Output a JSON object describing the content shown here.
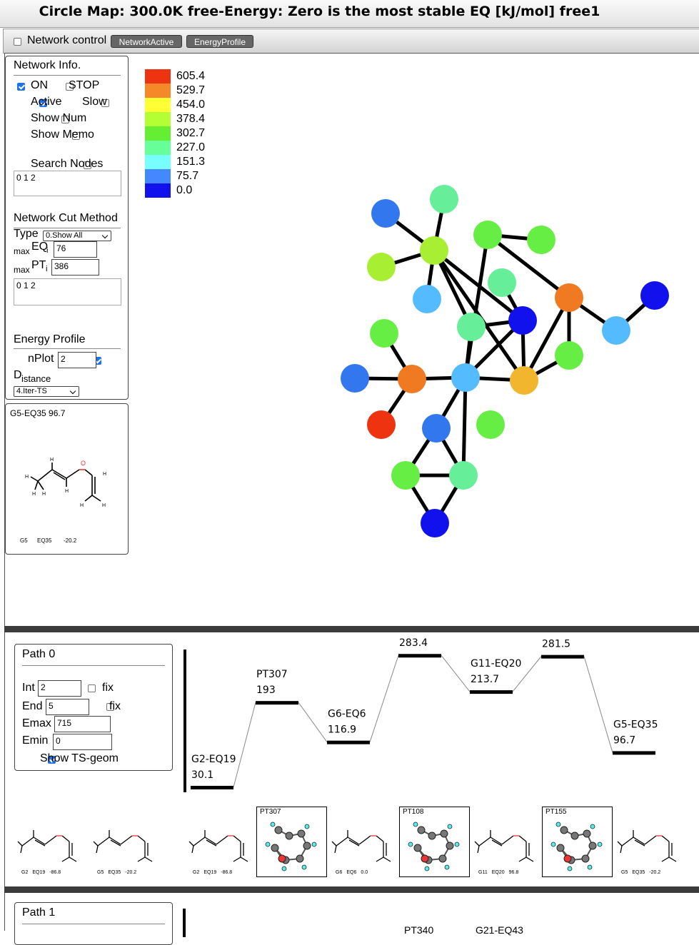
{
  "title": "Circle Map: 300.0K free-Energy: Zero is the most stable EQ [kJ/mol] free1",
  "control_bar": {
    "network_control_label": "Network control",
    "network_control_checked": false,
    "network_active_btn": "NetworkActive",
    "energy_profile_btn": "EnergyProfile"
  },
  "network_info": {
    "title": "Network Info.",
    "on_label": "ON",
    "on_checked": true,
    "stop_label": "STOP",
    "stop_checked": false,
    "active_label": "Active",
    "active_checked": true,
    "slow_label": "Slow",
    "slow_checked": false,
    "show_num_label": "Show Num",
    "show_num_checked": false,
    "show_memo_label": "Show Memo",
    "show_memo_checked": false,
    "search_nodes_label": "Search Nodes",
    "search_nodes_checked": false,
    "search_nodes_value": "0 1 2"
  },
  "cut_method": {
    "title": "Network Cut Method",
    "type_label": "Type",
    "type_value": "0.Show All",
    "max_eq_sub": "max",
    "max_eq_main": "EQ",
    "max_eq_i": "i",
    "max_eq_value": "76",
    "max_pt_sub": "max",
    "max_pt_main": "PT",
    "max_pt_i": "i",
    "max_pt_value": "386",
    "textarea_value": "0 1 2"
  },
  "energy_profile": {
    "title": "Energy Profile",
    "nplot_label": "nPlot",
    "nplot_checked": true,
    "nplot_value": "2",
    "distance_first": "D",
    "distance_rest": "istance",
    "distance_value": "4.Iter-TS"
  },
  "molecule_preview": {
    "header": "G5-EQ35 96.7",
    "caption_g": "G5",
    "caption_eq": "EQ35",
    "caption_val": "-20.2"
  },
  "legend": {
    "values": [
      "605.4",
      "529.7",
      "454.0",
      "378.4",
      "302.7",
      "227.0",
      "151.3",
      "75.7",
      "0.0"
    ],
    "colors": [
      "#ee3311",
      "#f5892a",
      "#ffff33",
      "#b3ff33",
      "#66ee33",
      "#66ff99",
      "#77ffff",
      "#4488ff",
      "#1111ee"
    ]
  },
  "paths": [
    {
      "title": "Path 0",
      "int_label": "Int",
      "int_value": "2",
      "int_fix_label": "fix",
      "end_label": "End",
      "end_value": "5",
      "end_fix_label": "fix",
      "emax_label": "Emax",
      "emax_value": "715",
      "emin_label": "Emin",
      "emin_value": "0",
      "show_ts_label": "Show TS-geom",
      "show_ts_checked": true,
      "levels": [
        {
          "name": "G2-EQ19",
          "energy": "30.1"
        },
        {
          "name": "PT307",
          "energy": "193"
        },
        {
          "name": "G6-EQ6",
          "energy": "116.9"
        },
        {
          "name": "PT108",
          "energy": "283.4"
        },
        {
          "name": "G11-EQ20",
          "energy": "213.7"
        },
        {
          "name": "PT155",
          "energy": "281.5"
        },
        {
          "name": "G5-EQ35",
          "energy": "96.7"
        }
      ],
      "thumbnails": [
        {
          "kind": "eq",
          "g": "G2",
          "eq": "EQ19",
          "val": "-86.8"
        },
        {
          "kind": "eq",
          "g": "G5",
          "eq": "EQ35",
          "val": "-20.2"
        },
        {
          "kind": "eq",
          "g": "G2",
          "eq": "EQ19",
          "val": "-86.8"
        },
        {
          "kind": "ts",
          "label": "PT307"
        },
        {
          "kind": "eq",
          "g": "G6",
          "eq": "EQ6",
          "val": "0.0"
        },
        {
          "kind": "ts",
          "label": "PT108"
        },
        {
          "kind": "eq",
          "g": "G11",
          "eq": "EQ20",
          "val": "96.8"
        },
        {
          "kind": "ts",
          "label": "PT155"
        },
        {
          "kind": "eq",
          "g": "G5",
          "eq": "EQ35",
          "val": "-20.2"
        }
      ]
    },
    {
      "title": "Path 1",
      "partial_labels": [
        "PT340",
        "G21-EQ43"
      ]
    }
  ]
}
